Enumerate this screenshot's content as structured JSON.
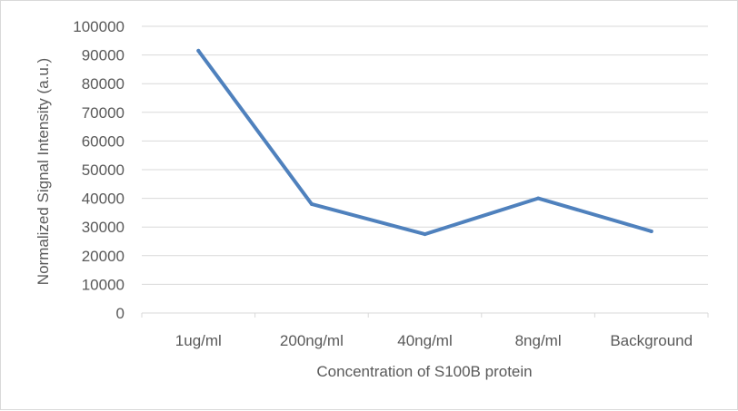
{
  "chart_data": {
    "type": "line",
    "title": "",
    "xlabel": "Concentration of S100B protein",
    "ylabel": "Normalized Signal Intensity (a.u.)",
    "categories": [
      "1ug/ml",
      "200ng/ml",
      "40ng/ml",
      "8ng/ml",
      "Background"
    ],
    "series": [
      {
        "values": [
          91500,
          38000,
          27500,
          40000,
          28500
        ],
        "color": "#4f81bd"
      }
    ],
    "ylim": [
      0,
      100000
    ],
    "yticks": [
      "0",
      "10000",
      "20000",
      "30000",
      "40000",
      "50000",
      "60000",
      "70000",
      "80000",
      "90000",
      "100000"
    ],
    "grid": "horizontal",
    "legend": "none"
  }
}
